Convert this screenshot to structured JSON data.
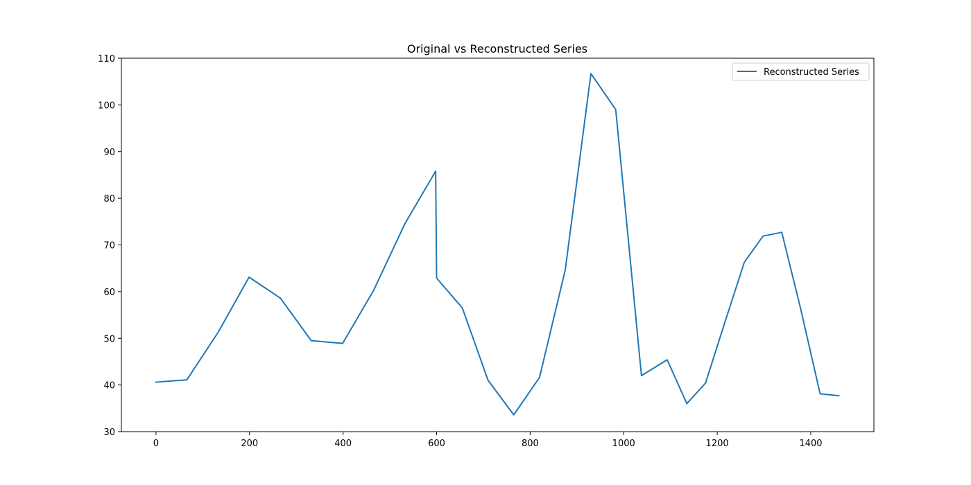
{
  "chart_data": {
    "type": "line",
    "title": "Original vs Reconstructed Series",
    "xlabel": "",
    "ylabel": "",
    "xlim": [
      -74,
      1535
    ],
    "ylim": [
      30,
      110
    ],
    "xticks": [
      "0",
      "200",
      "400",
      "600",
      "800",
      "1000",
      "1200",
      "1400"
    ],
    "yticks": [
      "30",
      "40",
      "50",
      "60",
      "70",
      "80",
      "90",
      "100",
      "110"
    ],
    "grid": false,
    "legend_position": "top-right",
    "series": [
      {
        "name": "Reconstructed Series",
        "color": "#1f77b4",
        "x": [
          0,
          66,
          133,
          199,
          266,
          332,
          399,
          465,
          532,
          598,
          600,
          655,
          710,
          765,
          820,
          875,
          930,
          983,
          1038,
          1093,
          1135,
          1175,
          1215,
          1258,
          1298,
          1338,
          1378,
          1420,
          1460
        ],
        "y": [
          40.6,
          41.1,
          51.3,
          63.1,
          58.6,
          49.5,
          48.9,
          60.2,
          74.5,
          85.8,
          62.9,
          56.5,
          41.0,
          33.6,
          41.6,
          64.6,
          106.7,
          99.0,
          42.0,
          45.4,
          36.0,
          40.4,
          53.0,
          66.3,
          71.9,
          72.7,
          56.5,
          38.1,
          37.7
        ]
      }
    ]
  }
}
